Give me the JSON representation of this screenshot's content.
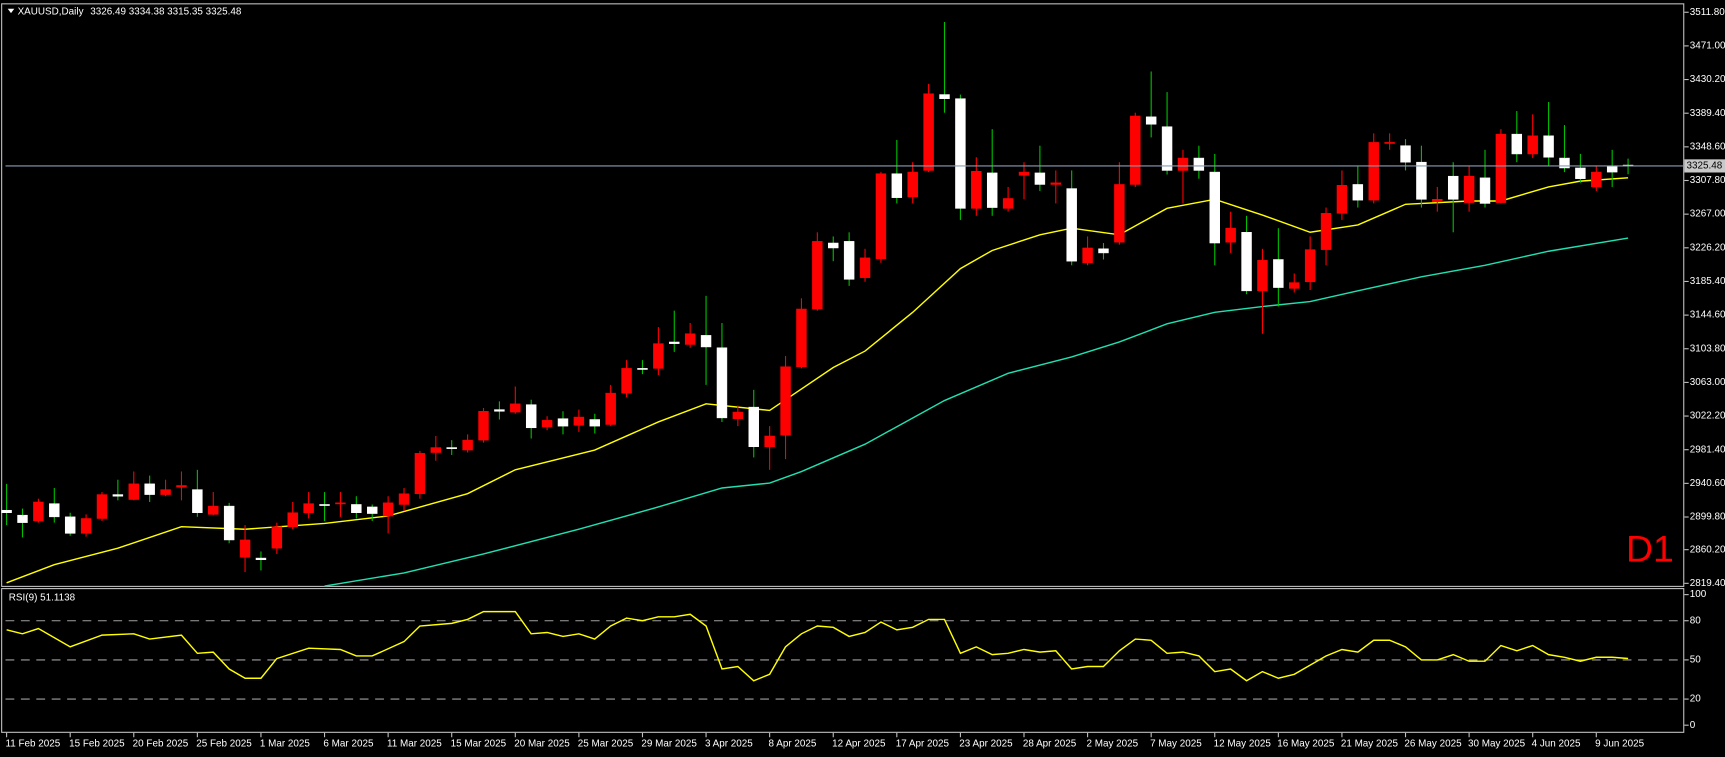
{
  "chart_data": [
    {
      "type": "candlestick",
      "title": "XAUUSD,Daily",
      "subtitle": "3326.49 3334.38 3315.35 3325.48",
      "timeframe": "D1",
      "categories": [
        "11 Feb 2025",
        null,
        null,
        null,
        "15 Feb 2025",
        null,
        null,
        null,
        "20 Feb 2025",
        null,
        null,
        null,
        "25 Feb 2025",
        null,
        null,
        null,
        "1 Mar 2025",
        null,
        null,
        null,
        "6 Mar 2025",
        null,
        null,
        null,
        "11 Mar 2025",
        null,
        null,
        null,
        "15 Mar 2025",
        null,
        null,
        null,
        "20 Mar 2025",
        null,
        null,
        null,
        "25 Mar 2025",
        null,
        null,
        null,
        "29 Mar 2025",
        null,
        null,
        null,
        "3 Apr 2025",
        null,
        null,
        null,
        "8 Apr 2025",
        null,
        null,
        null,
        "12 Apr 2025",
        null,
        null,
        null,
        "17 Apr 2025",
        null,
        null,
        null,
        "23 Apr 2025",
        null,
        null,
        null,
        "28 Apr 2025",
        null,
        null,
        null,
        "2 May 2025",
        null,
        null,
        null,
        "7 May 2025",
        null,
        null,
        null,
        "12 May 2025",
        null,
        null,
        null,
        "16 May 2025",
        null,
        null,
        null,
        "21 May 2025",
        null,
        null,
        null,
        "26 May 2025",
        null,
        null,
        null,
        "30 May 2025",
        null,
        null,
        null,
        "4 Jun 2025",
        null,
        null,
        null,
        "9 Jun 2025",
        null,
        null
      ],
      "open": [
        2908,
        2902,
        2895,
        2916,
        2900,
        2880,
        2898,
        2927,
        2921,
        2940,
        2927,
        2936,
        2933,
        2903,
        2913,
        2851,
        2850,
        2862,
        2888,
        2905,
        2915,
        2916,
        2915,
        2912,
        2901,
        2915,
        2928,
        2978,
        2984,
        2981,
        2993,
        3030,
        3027,
        3036,
        3009,
        3019,
        3011,
        3018,
        3012,
        3050,
        3080,
        3080,
        3112,
        3109,
        3120,
        3105,
        3019,
        3033,
        2985,
        2999,
        3082,
        3152,
        3232,
        3234,
        3190,
        3213,
        3316,
        3288,
        3320,
        3412,
        3407,
        3274,
        3317,
        3274,
        3314,
        3317,
        3303,
        3298,
        3208,
        3225,
        3233,
        3303,
        3385,
        3373,
        3320,
        3335,
        3318,
        3233,
        3245,
        3174,
        3212,
        3177,
        3185,
        3224,
        3268,
        3303,
        3284,
        3353,
        3350,
        3330,
        3282,
        3313,
        3281,
        3311,
        3281,
        3364,
        3340,
        3362,
        3335,
        3323,
        3300,
        3325,
        3326.49
      ],
      "high": [
        2940,
        2910,
        2922,
        2935,
        2905,
        2903,
        2930,
        2945,
        2955,
        2950,
        2945,
        2955,
        2957,
        2930,
        2917,
        2890,
        2858,
        2893,
        2918,
        2930,
        2930,
        2930,
        2925,
        2915,
        2925,
        2935,
        2980,
        2998,
        2993,
        3000,
        3032,
        3040,
        3058,
        3042,
        3022,
        3028,
        3030,
        3025,
        3060,
        3090,
        3090,
        3130,
        3150,
        3135,
        3168,
        3135,
        3035,
        3054,
        3010,
        3095,
        3165,
        3245,
        3240,
        3245,
        3225,
        3318,
        3357,
        3330,
        3425,
        3500,
        3412,
        3336,
        3370,
        3300,
        3330,
        3350,
        3320,
        3320,
        3240,
        3232,
        3330,
        3390,
        3440,
        3415,
        3345,
        3350,
        3340,
        3270,
        3265,
        3225,
        3250,
        3195,
        3240,
        3275,
        3320,
        3325,
        3365,
        3365,
        3358,
        3350,
        3300,
        3330,
        3325,
        3345,
        3370,
        3392,
        3388,
        3403,
        3375,
        3340,
        3325,
        3345,
        3334.38
      ],
      "low": [
        2890,
        2875,
        2893,
        2893,
        2877,
        2876,
        2895,
        2920,
        2920,
        2918,
        2925,
        2920,
        2900,
        2902,
        2868,
        2833,
        2835,
        2855,
        2885,
        2898,
        2895,
        2900,
        2898,
        2895,
        2880,
        2907,
        2922,
        2968,
        2975,
        2978,
        2990,
        3018,
        3025,
        2995,
        3005,
        3000,
        3003,
        3001,
        3010,
        3045,
        3073,
        3072,
        3100,
        3105,
        3060,
        3015,
        3010,
        2972,
        2957,
        2970,
        3080,
        3150,
        3210,
        3180,
        3185,
        3208,
        3280,
        3280,
        3318,
        3390,
        3260,
        3265,
        3265,
        3270,
        3285,
        3295,
        3280,
        3205,
        3205,
        3212,
        3230,
        3300,
        3360,
        3315,
        3280,
        3310,
        3205,
        3220,
        3170,
        3122,
        3155,
        3172,
        3175,
        3205,
        3260,
        3275,
        3280,
        3345,
        3320,
        3275,
        3270,
        3245,
        3270,
        3275,
        3280,
        3330,
        3335,
        3325,
        3318,
        3305,
        3295,
        3300,
        3315.35
      ],
      "close": [
        2905,
        2893,
        2918,
        2900,
        2880,
        2898,
        2927,
        2925,
        2940,
        2927,
        2933,
        2938,
        2905,
        2913,
        2872,
        2872,
        2848,
        2888,
        2905,
        2916,
        2914,
        2917,
        2905,
        2904,
        2917,
        2928,
        2977,
        2984,
        2983,
        2993,
        3028,
        3028,
        3037,
        3008,
        3017,
        3010,
        3021,
        3010,
        3050,
        3080,
        3079,
        3110,
        3110,
        3122,
        3106,
        3020,
        3027,
        2985,
        2998,
        3082,
        3152,
        3234,
        3226,
        3188,
        3214,
        3316,
        3287,
        3318,
        3413,
        3407,
        3274,
        3319,
        3275,
        3286,
        3318,
        3303,
        3305,
        3210,
        3226,
        3220,
        3303,
        3386,
        3376,
        3320,
        3335,
        3320,
        3232,
        3250,
        3174,
        3211,
        3178,
        3184,
        3224,
        3268,
        3302,
        3284,
        3354,
        3354,
        3330,
        3285,
        3285,
        3285,
        3313,
        3280,
        3364,
        3340,
        3362,
        3336,
        3323,
        3310,
        3318,
        3318,
        3325.48
      ],
      "up_color": "#ff0000",
      "down_color": "#ffffff",
      "up_wick_color": "#ff0000",
      "down_wick_color": "#00c000",
      "overlays": [
        {
          "type": "line",
          "color": "#ffff00",
          "x": [
            0,
            3,
            7,
            11,
            15,
            20,
            24,
            29,
            32,
            37,
            41,
            44,
            48,
            52,
            54,
            57,
            60,
            62,
            65,
            67,
            70,
            73,
            76,
            79,
            82,
            85,
            88,
            92,
            94,
            97,
            99,
            102
          ],
          "values": [
            2820,
            2842,
            2862,
            2888,
            2885,
            2892,
            2901,
            2928,
            2957,
            2981,
            3015,
            3037,
            3029,
            3081,
            3101,
            3148,
            3201,
            3223,
            3242,
            3250,
            3242,
            3274,
            3285,
            3266,
            3245,
            3254,
            3279,
            3283,
            3283,
            3300,
            3307,
            3311
          ]
        },
        {
          "type": "line",
          "color": "#20e0b0",
          "x": [
            20,
            25,
            30,
            36,
            41,
            45,
            48,
            50,
            54,
            59,
            63,
            67,
            70,
            73,
            76,
            79,
            82,
            85,
            89,
            93,
            97,
            102
          ],
          "values": [
            2816,
            2832,
            2855,
            2885,
            2912,
            2935,
            2941,
            2955,
            2988,
            3041,
            3074,
            3094,
            3112,
            3134,
            3148,
            3155,
            3161,
            3174,
            3191,
            3205,
            3222,
            3238
          ]
        }
      ],
      "current_price": {
        "value": 3325.48,
        "label": "3325.48"
      },
      "current_price_color": "#8a9bb4",
      "ylim": [
        2815,
        3520
      ],
      "yticks": [
        {
          "value": 3511.8,
          "label": "3511.80"
        },
        {
          "value": 3471,
          "label": "3471.00"
        },
        {
          "value": 3430.2,
          "label": "3430.20"
        },
        {
          "value": 3389.4,
          "label": "3389.40"
        },
        {
          "value": 3348.6,
          "label": "3348.60"
        },
        {
          "value": 3307.8,
          "label": "3307.80"
        },
        {
          "value": 3267,
          "label": "3267.00"
        },
        {
          "value": 3226.2,
          "label": "3226.20"
        },
        {
          "value": 3185.4,
          "label": "3185.40"
        },
        {
          "value": 3144.6,
          "label": "3144.60"
        },
        {
          "value": 3103.8,
          "label": "3103.80"
        },
        {
          "value": 3063,
          "label": "3063.00"
        },
        {
          "value": 3022.2,
          "label": "3022.20"
        },
        {
          "value": 2981.4,
          "label": "2981.40"
        },
        {
          "value": 2940.6,
          "label": "2940.60"
        },
        {
          "value": 2899.8,
          "label": "2899.80"
        },
        {
          "value": 2860.2,
          "label": "2860.20"
        },
        {
          "value": 2819.4,
          "label": "2819.40"
        }
      ]
    },
    {
      "type": "line",
      "title": "RSI(9) 51.1138",
      "color": "#ffff00",
      "x": [
        0,
        1,
        2,
        4,
        6,
        8,
        9,
        11,
        12,
        13,
        14,
        15,
        16,
        17,
        19,
        21,
        22,
        23,
        25,
        26,
        28,
        29,
        30,
        32,
        33,
        34,
        35,
        36,
        37,
        38,
        39,
        40,
        41,
        42,
        43,
        44,
        45,
        46,
        47,
        48,
        49,
        50,
        51,
        52,
        53,
        54,
        55,
        56,
        57,
        58,
        59,
        60,
        61,
        62,
        63,
        64,
        65,
        66,
        67,
        68,
        69,
        70,
        71,
        72,
        73,
        74,
        75,
        76,
        77,
        78,
        79,
        80,
        81,
        82,
        83,
        84,
        85,
        86,
        87,
        88,
        89,
        90,
        91,
        92,
        93,
        94,
        95,
        96,
        97,
        98,
        99,
        100,
        101,
        102
      ],
      "values": [
        73,
        70,
        74,
        60,
        69,
        70,
        66,
        69,
        55,
        56,
        43,
        36,
        36,
        51,
        59,
        58,
        53,
        53,
        64,
        76,
        78,
        81,
        87,
        87,
        70,
        71,
        68,
        70,
        66,
        76,
        82,
        80,
        83,
        83,
        85,
        76,
        43,
        45,
        34,
        39,
        60,
        70,
        76,
        75,
        68,
        71,
        79,
        73,
        75,
        81,
        81,
        55,
        60,
        54,
        55,
        58,
        56,
        57,
        43,
        45,
        45,
        57,
        66,
        65,
        55,
        56,
        53,
        41,
        43,
        34,
        41,
        36,
        39,
        46,
        53,
        58,
        56,
        65,
        65,
        60,
        50,
        50,
        54,
        49,
        49,
        61,
        57,
        61,
        54,
        52,
        49,
        52,
        52,
        51.1138
      ],
      "ylim": [
        0,
        100
      ],
      "yticks": [
        100,
        80,
        50,
        20,
        0
      ],
      "levels": [
        80,
        50,
        20
      ],
      "level_color": "#a0a0a0"
    }
  ]
}
